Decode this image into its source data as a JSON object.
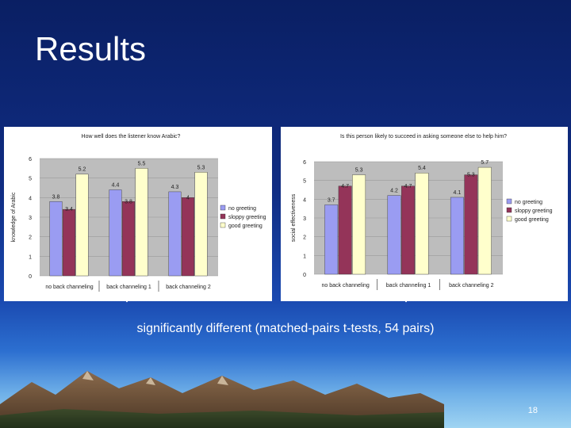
{
  "slide": {
    "title": "Results",
    "caption": "significantly different (matched-pairs t-tests, 54 pairs)",
    "page_number": "18"
  },
  "colors": {
    "no_greeting": "#9a9cf2",
    "sloppy_greeting": "#943459",
    "good_greeting": "#ffffcc",
    "plot_bg": "#bdbdbd",
    "background_top": "#0a1f63"
  },
  "chart_data": [
    {
      "type": "bar",
      "title": "How well does the listener know Arabic?",
      "ylabel": "knowledge of Arabic",
      "xlabel": "",
      "ylim": [
        0,
        6
      ],
      "yticks": [
        "0",
        "1",
        "2",
        "3",
        "4",
        "5",
        "6"
      ],
      "grid": true,
      "legend_placement": "right",
      "categories": [
        "no back channeling",
        "back channeling 1",
        "back channeling 2"
      ],
      "series": [
        {
          "name": "no greeting",
          "values": [
            3.8,
            4.4,
            4.3
          ],
          "labels": [
            "3.8",
            "4.4",
            "4.3"
          ]
        },
        {
          "name": "sloppy greeting",
          "values": [
            3.4,
            3.8,
            4
          ],
          "labels": [
            "3.4",
            "3.8",
            "4"
          ]
        },
        {
          "name": "good greeting",
          "values": [
            5.2,
            5.5,
            5.3
          ],
          "labels": [
            "5.2",
            "5.5",
            "5.3"
          ]
        }
      ]
    },
    {
      "type": "bar",
      "title": "Is this person likely to succeed in asking someone else to help him?",
      "ylabel": "social effectiveness",
      "xlabel": "",
      "ylim": [
        0,
        6
      ],
      "yticks": [
        "0",
        "1",
        "2",
        "3",
        "4",
        "5",
        "6"
      ],
      "grid": true,
      "legend_placement": "right",
      "categories": [
        "no back channeling",
        "back channeling 1",
        "back channeling 2"
      ],
      "series": [
        {
          "name": "no greeting",
          "values": [
            3.7,
            4.2,
            4.1
          ],
          "labels": [
            "3.7",
            "4.2",
            "4.1"
          ]
        },
        {
          "name": "sloppy greeting",
          "values": [
            4.7,
            4.7,
            5.3
          ],
          "labels": [
            "4.7",
            "4.7",
            "5.3"
          ]
        },
        {
          "name": "good greeting",
          "values": [
            5.3,
            5.4,
            5.7
          ],
          "labels": [
            "5.3",
            "5.4",
            "5.7"
          ]
        }
      ]
    }
  ]
}
